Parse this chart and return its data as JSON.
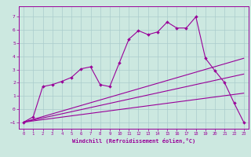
{
  "xlabel": "Windchill (Refroidissement éolien,°C)",
  "ylabel": "",
  "bg_color": "#cce8e0",
  "line_color": "#990099",
  "grid_color": "#aacccc",
  "xlim": [
    -0.5,
    23.5
  ],
  "ylim": [
    -1.5,
    7.8
  ],
  "xticks": [
    0,
    1,
    2,
    3,
    4,
    5,
    6,
    7,
    8,
    9,
    10,
    11,
    12,
    13,
    14,
    15,
    16,
    17,
    18,
    19,
    20,
    21,
    22,
    23
  ],
  "yticks": [
    -1,
    0,
    1,
    2,
    3,
    4,
    5,
    6,
    7
  ],
  "main_x": [
    0,
    1,
    2,
    3,
    4,
    5,
    6,
    7,
    8,
    9,
    10,
    11,
    12,
    13,
    14,
    15,
    16,
    17,
    18,
    19,
    20,
    21,
    22,
    23
  ],
  "main_y": [
    -1.0,
    -0.6,
    1.7,
    1.85,
    2.1,
    2.4,
    3.05,
    3.2,
    1.85,
    1.7,
    3.5,
    5.3,
    5.95,
    5.65,
    5.85,
    6.6,
    6.15,
    6.15,
    7.0,
    3.85,
    2.9,
    2.0,
    0.45,
    -1.0
  ],
  "trend1_x": [
    0,
    23
  ],
  "trend1_y": [
    -1.0,
    3.85
  ],
  "trend2_x": [
    0,
    23
  ],
  "trend2_y": [
    -1.0,
    2.65
  ],
  "trend3_x": [
    0,
    23
  ],
  "trend3_y": [
    -1.0,
    1.2
  ]
}
